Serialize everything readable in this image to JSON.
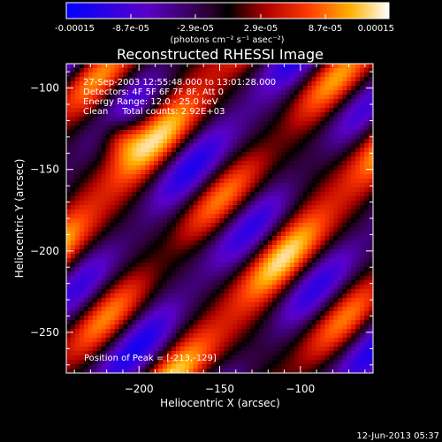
{
  "colorbar": {
    "tick_labels": [
      "-0.00015",
      "-8.7e-05",
      "-2.9e-05",
      "2.9e-05",
      "8.7e-05",
      "0.00015"
    ],
    "unit_label": "(photons cm⁻² s⁻¹ asec⁻²)",
    "min": -0.00015,
    "max": 0.00015
  },
  "chart_data": {
    "type": "heatmap",
    "title": "Reconstructed RHESSI Image",
    "xlabel": "Heliocentric X (arcsec)",
    "ylabel": "Heliocentric Y (arcsec)",
    "xlim": [
      -245,
      -55
    ],
    "ylim": [
      -275,
      -85
    ],
    "x_ticks": [
      -200,
      -150,
      -100
    ],
    "y_ticks": [
      -100,
      -150,
      -200,
      -250
    ],
    "x_tick_labels": [
      "−200",
      "−150",
      "−100"
    ],
    "y_tick_labels": [
      "−100",
      "−150",
      "−200",
      "−250"
    ],
    "annotations": {
      "time": "27-Sep-2003 12:55:48.000 to 13:01:28.000",
      "detectors": "Detectors: 4F 5F 6F 7F 8F, Att 0",
      "energy": "Energy Range: 12.0 - 25.0 keV",
      "method": "Clean     Total counts: 2.92E+03",
      "peak": "Position of Peak = [-213,-129]"
    },
    "peak_position": [
      -213,
      -129
    ],
    "total_counts": 2920,
    "energy_range_keV": [
      12.0,
      25.0
    ],
    "grid": false
  },
  "footer": {
    "timestamp": "12-Jun-2013 05:37"
  }
}
